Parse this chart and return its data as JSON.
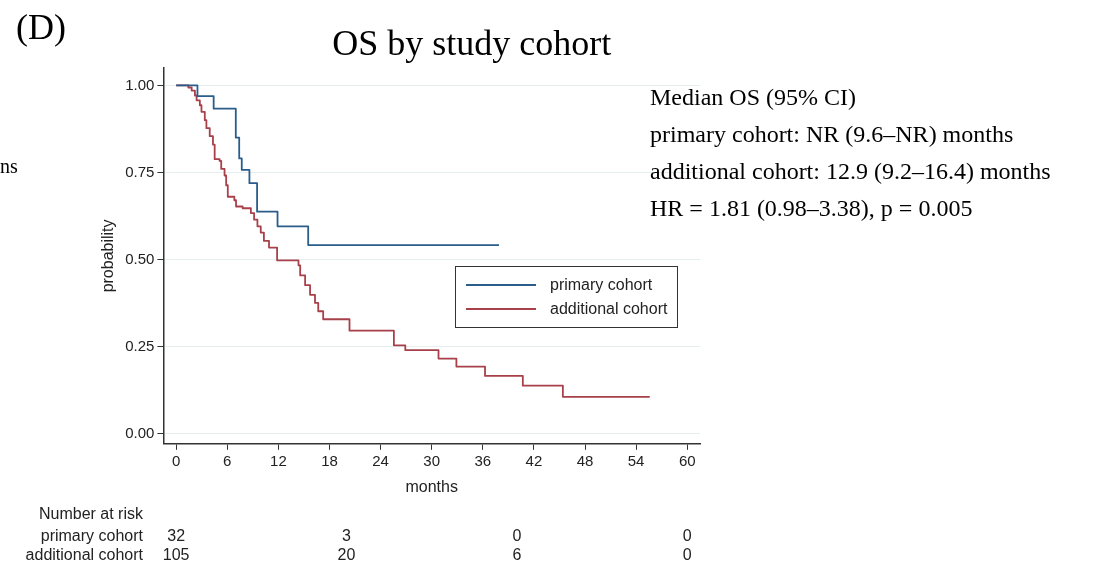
{
  "chart_data": {
    "type": "step",
    "title": "OS by study cohort",
    "xlabel": "months",
    "ylabel": "probability",
    "xlim": [
      -1.5,
      61.5
    ],
    "xticks": [
      0,
      6,
      12,
      18,
      24,
      30,
      36,
      42,
      48,
      54,
      60
    ],
    "ylim": [
      -0.03,
      1.05
    ],
    "yticks": [
      {
        "value": 0,
        "label": "0.00"
      },
      {
        "value": 0.25,
        "label": "0.25"
      },
      {
        "value": 0.5,
        "label": "0.50"
      },
      {
        "value": 0.75,
        "label": "0.75"
      },
      {
        "value": 1,
        "label": "1.00"
      }
    ],
    "grid": "y",
    "legend": "right",
    "marker": "none",
    "line_style": "solid",
    "series": [
      {
        "name": "primary cohort",
        "color": "#2a5d8a",
        "x": [
          0,
          2.5,
          4.4,
          7.0,
          7.4,
          7.7,
          8.6,
          9.5,
          11.9,
          15.5,
          37.9
        ],
        "values": [
          1,
          0.969,
          0.933,
          0.85,
          0.79,
          0.757,
          0.719,
          0.637,
          0.595,
          0.541,
          0.541
        ]
      },
      {
        "name": "additional cohort",
        "color": "#a8404a",
        "x": [
          0,
          1.43,
          1.82,
          2.2,
          2.4,
          2.78,
          2.97,
          3.36,
          3.55,
          3.94,
          4.32,
          4.52,
          5.1,
          5.29,
          5.68,
          5.87,
          6.06,
          6.83,
          7.03,
          7.8,
          8.77,
          9.15,
          9.54,
          9.93,
          10.3,
          10.9,
          11.85,
          14.36,
          14.56,
          15.14,
          15.72,
          16.3,
          16.68,
          17.26,
          20.35,
          25.56,
          26.9,
          30.8,
          32.9,
          36.26,
          40.7,
          45.4,
          55.6
        ],
        "values": [
          1,
          0.994,
          0.985,
          0.971,
          0.957,
          0.943,
          0.924,
          0.9,
          0.877,
          0.854,
          0.83,
          0.788,
          0.783,
          0.76,
          0.741,
          0.713,
          0.68,
          0.67,
          0.652,
          0.647,
          0.633,
          0.614,
          0.595,
          0.577,
          0.553,
          0.534,
          0.497,
          0.483,
          0.454,
          0.426,
          0.398,
          0.375,
          0.351,
          0.328,
          0.295,
          0.253,
          0.239,
          0.215,
          0.192,
          0.165,
          0.137,
          0.105,
          0.105
        ]
      }
    ],
    "annotations": [
      "(D)",
      "ns",
      "Median OS (95% CI)",
      "primary cohort: NR (9.6–NR) months",
      "additional cohort: 12.9 (9.2–16.4) months",
      "HR = 1.81 (0.98–3.38), p = 0.005",
      "Number at risk",
      "primary cohort",
      "32",
      "3",
      "0",
      "0",
      "additional cohort",
      "105",
      "20",
      "6",
      "0"
    ]
  }
}
